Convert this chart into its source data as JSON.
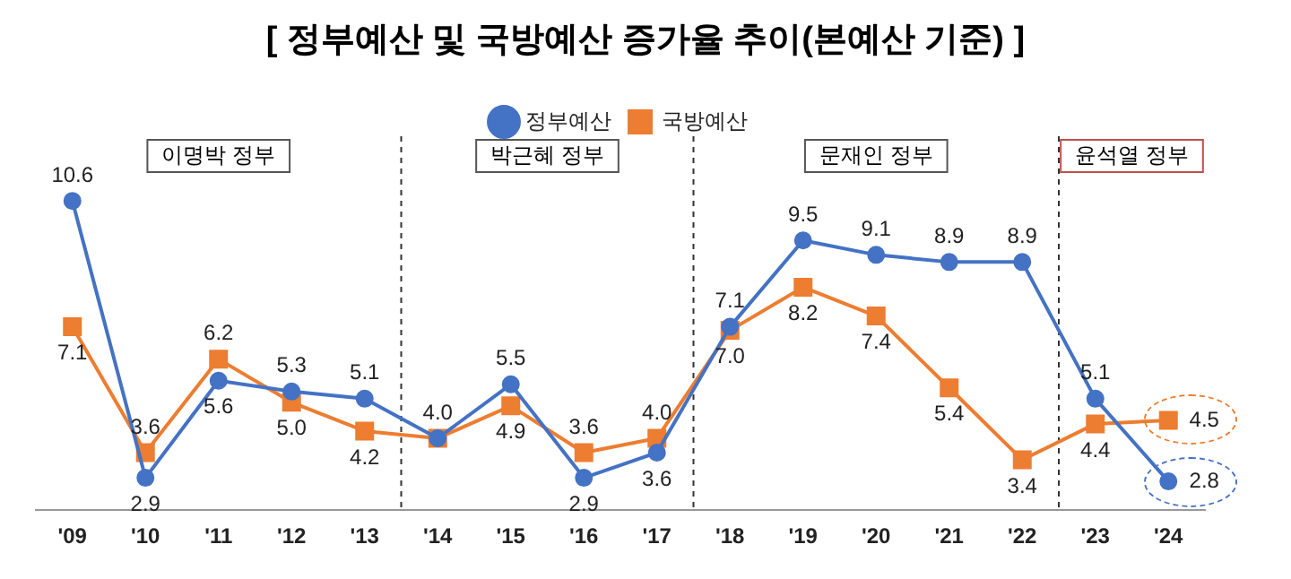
{
  "chart_data": {
    "type": "line",
    "title": "[ 정부예산 및 국방예산 증가율 추이(본예산 기준) ]",
    "categories": [
      "'09",
      "'10",
      "'11",
      "'12",
      "'13",
      "'14",
      "'15",
      "'16",
      "'17",
      "'18",
      "'19",
      "'20",
      "'21",
      "'22",
      "'23",
      "'24"
    ],
    "series": [
      {
        "name": "정부예산",
        "color": "#4472c4",
        "marker": "circle",
        "values": [
          10.6,
          2.9,
          5.6,
          5.3,
          5.1,
          4.0,
          5.5,
          2.9,
          3.6,
          7.1,
          9.5,
          9.1,
          8.9,
          8.9,
          5.1,
          2.8
        ],
        "value_labels": [
          "10.6",
          "2.9",
          "5.6",
          "5.3",
          "5.1",
          "4.0",
          "5.5",
          "2.9",
          "3.6",
          "7.1",
          "9.5",
          "9.1",
          "8.9",
          "8.9",
          "5.1",
          "2.8"
        ]
      },
      {
        "name": "국방예산",
        "color": "#ed7d31",
        "marker": "square",
        "values": [
          7.1,
          3.6,
          6.2,
          5.0,
          4.2,
          4.0,
          4.9,
          3.6,
          4.0,
          7.0,
          8.2,
          7.4,
          5.4,
          3.4,
          4.4,
          4.5
        ],
        "value_labels": [
          "7.1",
          "3.6",
          "6.2",
          "5.0",
          "4.2",
          null,
          "4.9",
          "3.6",
          "4.0",
          "7.0",
          "8.2",
          "7.4",
          "5.4",
          "3.4",
          "4.4",
          "4.5"
        ]
      }
    ],
    "annotations": [
      "이명박 정부",
      "박근혜 정부",
      "문재인 정부",
      "윤석열 정부"
    ],
    "legend": "top",
    "grid": false
  }
}
